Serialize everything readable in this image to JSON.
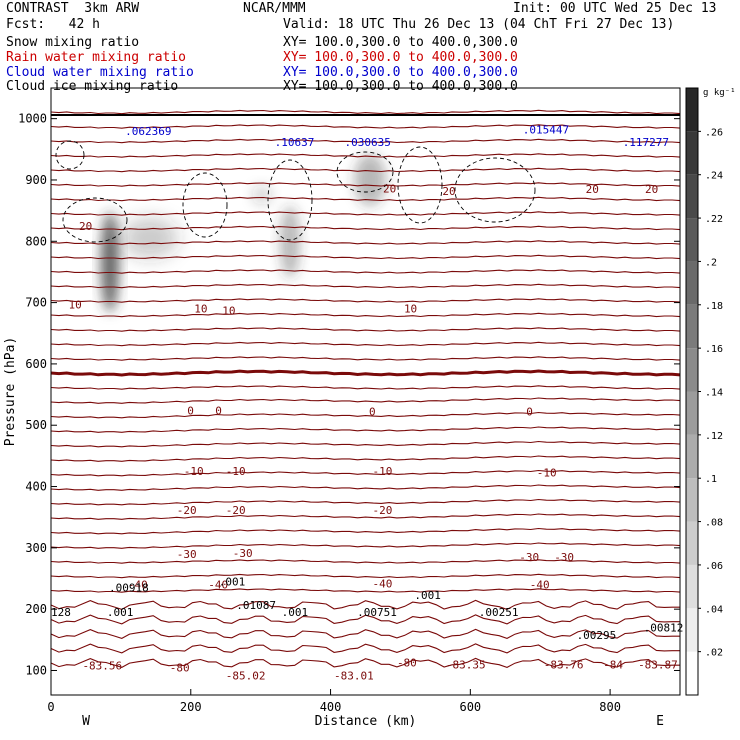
{
  "header": {
    "title_left": "CONTRAST  3km ARW",
    "title_center": "NCAR/MMM",
    "init": "Init: 00 UTC Wed 25 Dec 13",
    "fcst": "Fcst:   42 h",
    "valid": "Valid: 18 UTC Thu 26 Dec 13 (04 ChT Fri 27 Dec 13)",
    "fields": [
      {
        "name": "Snow mixing ratio",
        "xy": "XY= 100.0,300.0 to 400.0,300.0",
        "color": "#000000"
      },
      {
        "name": "Rain water mixing ratio",
        "xy": "XY= 100.0,300.0 to 400.0,300.0",
        "color": "#cc0000"
      },
      {
        "name": "Cloud water mixing ratio",
        "xy": "XY= 100.0,300.0 to 400.0,300.0",
        "color": "#0000cc"
      },
      {
        "name": "Cloud ice mixing ratio",
        "xy": "XY= 100.0,300.0 to 400.0,300.0",
        "color": "#000000"
      }
    ]
  },
  "chart_data": {
    "type": "heatmap",
    "xlabel": "Distance (km)",
    "ylabel": "Pressure (hPa)",
    "xlim": [
      0,
      900
    ],
    "ylim": [
      1050,
      60
    ],
    "x_ticks": [
      0,
      200,
      400,
      600,
      800
    ],
    "y_ticks": [
      100,
      200,
      300,
      400,
      500,
      600,
      700,
      800,
      900,
      1000
    ],
    "direction_labels": {
      "left": "W",
      "right": "E"
    },
    "colorbar": {
      "unit": "g kg⁻¹",
      "ticks": [
        0.02,
        0.04,
        0.06,
        0.08,
        0.1,
        0.12,
        0.14,
        0.16,
        0.18,
        0.2,
        0.22,
        0.24,
        0.26
      ],
      "tick_labels": [
        ".02",
        ".04",
        ".06",
        ".08",
        ".1",
        ".12",
        ".14",
        ".16",
        ".18",
        ".2",
        ".22",
        ".24",
        ".26"
      ],
      "range": [
        0,
        0.28
      ]
    },
    "temperature_contour_labels": [
      {
        "text": "-83.56",
        "x": 45,
        "p": 108
      },
      {
        "text": "-85.02",
        "x": 250,
        "p": 92
      },
      {
        "text": "-83.01",
        "x": 405,
        "p": 92
      },
      {
        "text": "-83.35",
        "x": 565,
        "p": 110
      },
      {
        "text": "-83.76",
        "x": 705,
        "p": 110
      },
      {
        "text": "-84",
        "x": 790,
        "p": 110
      },
      {
        "text": "-83.87",
        "x": 840,
        "p": 110
      },
      {
        "text": "-80",
        "x": 170,
        "p": 105
      },
      {
        "text": "-80",
        "x": 495,
        "p": 113
      },
      {
        "text": "-40",
        "x": 110,
        "p": 240
      },
      {
        "text": "-40",
        "x": 225,
        "p": 240
      },
      {
        "text": "-40",
        "x": 460,
        "p": 242
      },
      {
        "text": "-40",
        "x": 685,
        "p": 240
      },
      {
        "text": "-30",
        "x": 180,
        "p": 290
      },
      {
        "text": "-30",
        "x": 260,
        "p": 292
      },
      {
        "text": "-30",
        "x": 670,
        "p": 285
      },
      {
        "text": "-30",
        "x": 720,
        "p": 285
      },
      {
        "text": "-20",
        "x": 180,
        "p": 362
      },
      {
        "text": "-20",
        "x": 250,
        "p": 362
      },
      {
        "text": "-20",
        "x": 460,
        "p": 362
      },
      {
        "text": "-10",
        "x": 190,
        "p": 425
      },
      {
        "text": "-10",
        "x": 250,
        "p": 425
      },
      {
        "text": "-10",
        "x": 460,
        "p": 425
      },
      {
        "text": "-10",
        "x": 695,
        "p": 423
      },
      {
        "text": "0",
        "x": 195,
        "p": 524
      },
      {
        "text": "0",
        "x": 235,
        "p": 524
      },
      {
        "text": "0",
        "x": 455,
        "p": 522
      },
      {
        "text": "0",
        "x": 680,
        "p": 522
      },
      {
        "text": "10",
        "x": 25,
        "p": 697
      },
      {
        "text": "10",
        "x": 205,
        "p": 690
      },
      {
        "text": "10",
        "x": 245,
        "p": 687
      },
      {
        "text": "10",
        "x": 505,
        "p": 690
      },
      {
        "text": "20",
        "x": 40,
        "p": 825
      },
      {
        "text": "20",
        "x": 475,
        "p": 886
      },
      {
        "text": "20",
        "x": 560,
        "p": 882
      },
      {
        "text": "20",
        "x": 765,
        "p": 885
      },
      {
        "text": "20",
        "x": 850,
        "p": 885
      }
    ],
    "mixing_ratio_labels": [
      {
        "field": "Snow mixing ratio",
        "text": ".001",
        "x": 80,
        "p": 195
      },
      {
        "field": "Snow mixing ratio",
        "text": ".001",
        "x": 240,
        "p": 245
      },
      {
        "field": "Snow mixing ratio",
        "text": ".001",
        "x": 330,
        "p": 195
      },
      {
        "field": "Snow mixing ratio",
        "text": ".001",
        "x": 520,
        "p": 223
      },
      {
        "field": "Snow mixing ratio",
        "text": "128",
        "x": 0,
        "p": 195
      },
      {
        "field": "Snow mixing ratio",
        "text": ".00918",
        "x": 83,
        "p": 235
      },
      {
        "field": "Snow mixing ratio",
        "text": ".01087",
        "x": 265,
        "p": 207
      },
      {
        "field": "Snow mixing ratio",
        "text": ".00751",
        "x": 438,
        "p": 195
      },
      {
        "field": "Snow mixing ratio",
        "text": ".00251",
        "x": 612,
        "p": 195
      },
      {
        "field": "Snow mixing ratio",
        "text": ".00295",
        "x": 752,
        "p": 158
      },
      {
        "field": "Snow mixing ratio",
        "text": ".00812",
        "x": 848,
        "p": 170
      },
      {
        "field": "Cloud water mixing ratio",
        "text": ".062369",
        "x": 106,
        "p": 980
      },
      {
        "field": "Cloud water mixing ratio",
        "text": ".10637",
        "x": 320,
        "p": 962
      },
      {
        "field": "Cloud water mixing ratio",
        "text": ".030635",
        "x": 420,
        "p": 962
      },
      {
        "field": "Cloud water mixing ratio",
        "text": ".015447",
        "x": 675,
        "p": 982
      },
      {
        "field": "Cloud water mixing ratio",
        "text": ".117277",
        "x": 818,
        "p": 962
      }
    ]
  }
}
